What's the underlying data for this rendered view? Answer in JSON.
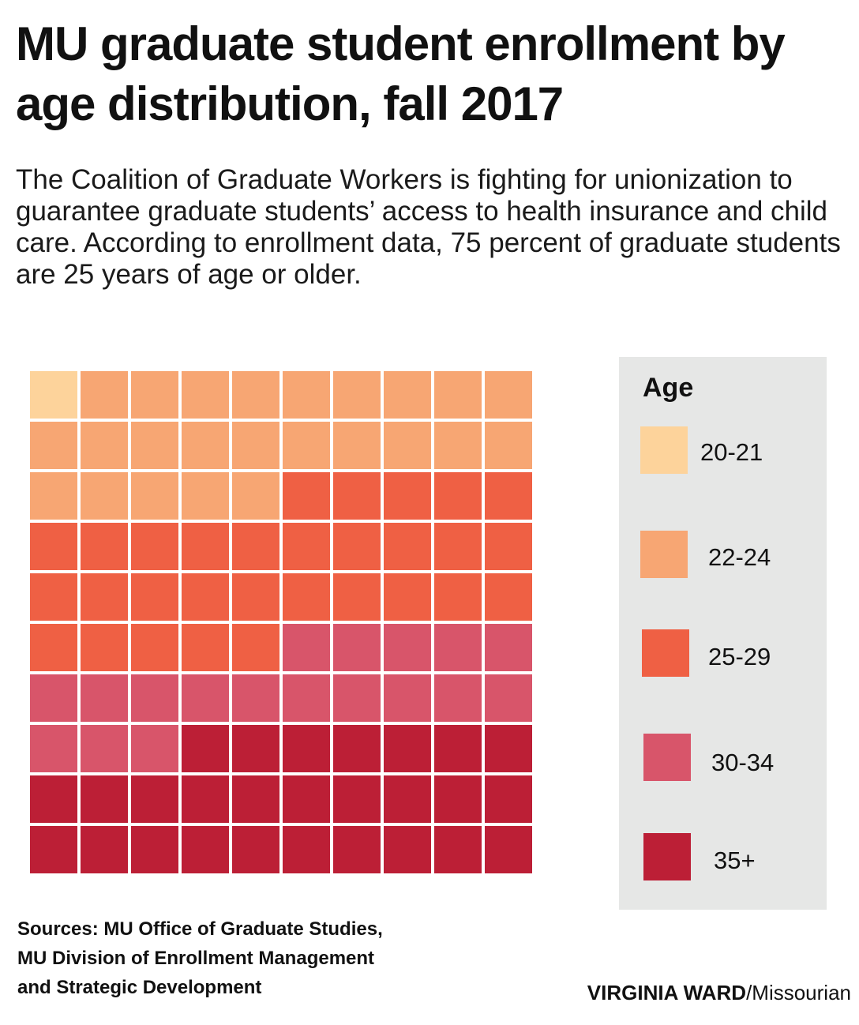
{
  "chart_data": {
    "type": "waffle",
    "title": "MU graduate student enrollment by age distribution, fall 2017",
    "subtitle": "The Coalition of Graduate Workers is fighting for unionization to guarantee graduate students’ access to health insurance and child care. According to enrollment data, 75 percent of graduate students are 25 years of age or older.",
    "grid": {
      "rows": 10,
      "cols": 10
    },
    "legend_title": "Age",
    "series": [
      {
        "name": "20-21",
        "value": 1,
        "color": "#fdd39b"
      },
      {
        "name": "22-24",
        "value": 24,
        "color": "#f7a673"
      },
      {
        "name": "25-29",
        "value": 30,
        "color": "#ef6044"
      },
      {
        "name": "30-34",
        "value": 18,
        "color": "#d8556a"
      },
      {
        "name": "35+",
        "value": 27,
        "color": "#bc1f36"
      }
    ]
  },
  "sources": {
    "lines": [
      "Sources: MU Office of Graduate Studies,",
      "MU Division of Enrollment Management",
      "and Strategic Development"
    ]
  },
  "credit": {
    "name": "VIRGINIA WARD",
    "outlet": "/Missourian"
  }
}
